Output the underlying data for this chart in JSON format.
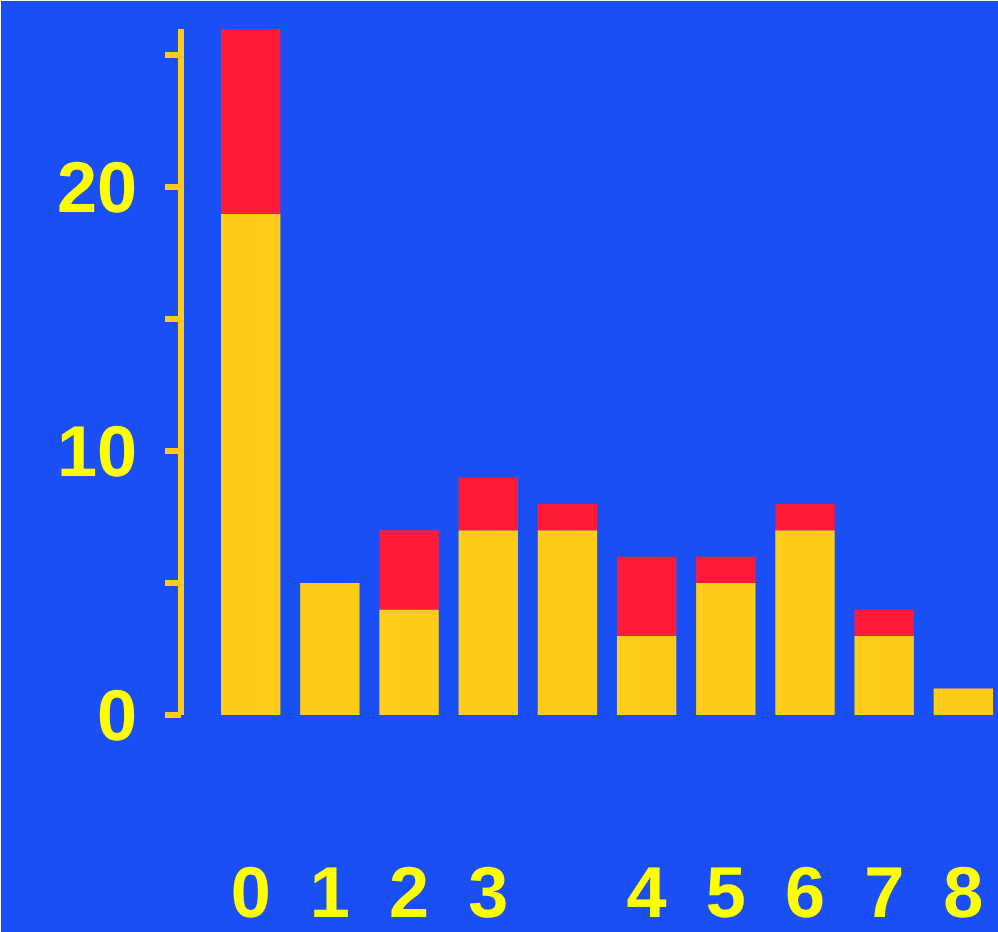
{
  "chart_data": {
    "type": "bar",
    "stacked": true,
    "categories": [
      "0",
      "1",
      "2",
      "3",
      null,
      "4",
      "5",
      "6",
      "7",
      "8"
    ],
    "series": [
      {
        "color": "#ffcc1a",
        "values": [
          19,
          5,
          4,
          7,
          7,
          3,
          5,
          7,
          3,
          1
        ]
      },
      {
        "color": "#ff1a3a",
        "values": [
          7,
          0,
          3,
          2,
          1,
          3,
          1,
          1,
          1,
          0
        ]
      }
    ],
    "ylim": [
      0,
      26
    ],
    "yticks": [
      0,
      {
        "value": 5,
        "label": null
      },
      10,
      {
        "value": 15,
        "label": null
      },
      20,
      {
        "value": 25,
        "label": null
      }
    ],
    "grid": false
  }
}
